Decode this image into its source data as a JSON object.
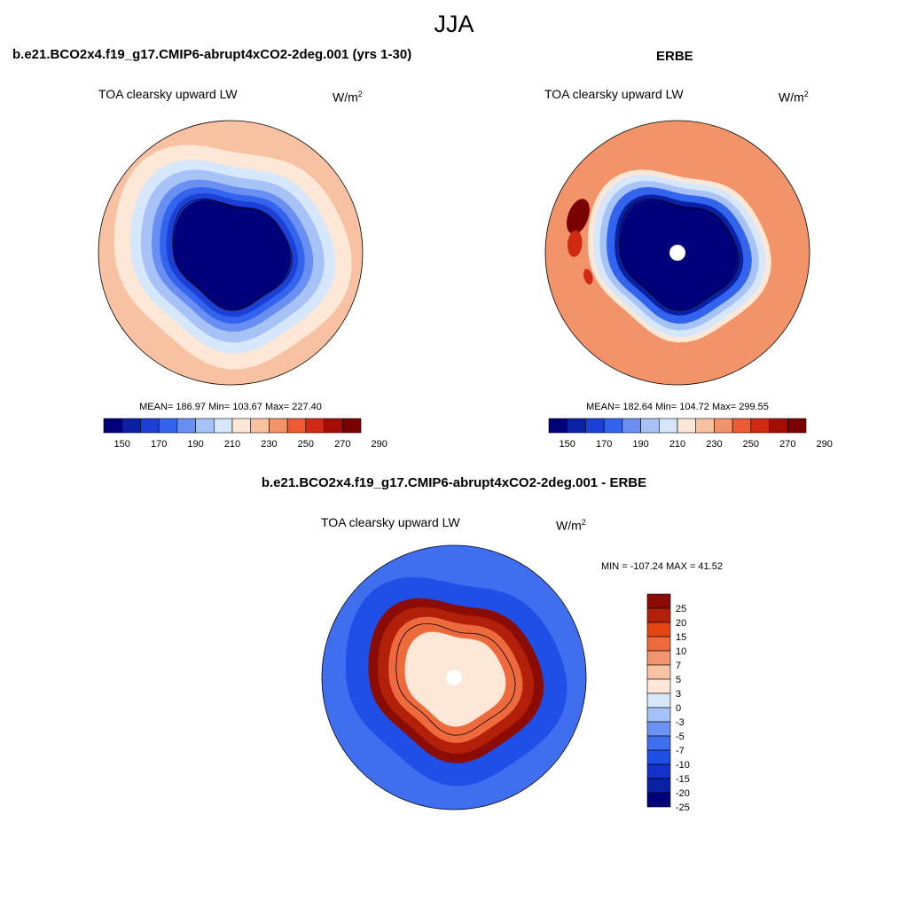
{
  "figure": {
    "title": "JJA",
    "colors": {
      "abs_palette": [
        "#00007a",
        "#0a21a6",
        "#1c3fd6",
        "#3364ee",
        "#6a8ff2",
        "#a6c2f7",
        "#d6e6fb",
        "#fde7d7",
        "#f8c1a1",
        "#f3936a",
        "#ee5a33",
        "#d02a12",
        "#a60e05",
        "#7a0000"
      ],
      "diff_palette": [
        "#00007a",
        "#0a21a6",
        "#1432c9",
        "#1f4fe6",
        "#3f6eef",
        "#6d93f2",
        "#a4c2f7",
        "#d8e7fb",
        "#fde8d8",
        "#f7c3a3",
        "#f29470",
        "#ee6a3d",
        "#e24412",
        "#b3200a",
        "#8a0c04"
      ],
      "coast": "#000000",
      "missing": "#ffffff"
    }
  },
  "chart_data": [
    {
      "type": "polar-contour",
      "panel": "model",
      "title": "b.e21.BCO2x4.f19_g17.CMIP6-abrupt4xCO2-2deg.001 (yrs 1-30)",
      "variable": "TOA clearsky upward LW",
      "units": "W/m",
      "units_sup": "2",
      "stats": {
        "mean": "186.97",
        "min": "103.67",
        "max": "227.40"
      },
      "stats_text": "MEAN= 186.97  Min= 103.67  Max= 227.40",
      "colorbar": {
        "levels": [
          150,
          160,
          170,
          180,
          190,
          200,
          210,
          220,
          230,
          240,
          250,
          260,
          270,
          280,
          290
        ],
        "tick_labels": [
          "150",
          "170",
          "190",
          "210",
          "230",
          "250",
          "270",
          "290"
        ]
      },
      "bands": [
        {
          "value": 225,
          "r": 1.0
        },
        {
          "value": 215,
          "r": 0.86
        },
        {
          "value": 205,
          "r": 0.74
        },
        {
          "value": 195,
          "r": 0.66
        },
        {
          "value": 185,
          "r": 0.58
        },
        {
          "value": 175,
          "r": 0.52
        },
        {
          "value": 165,
          "r": 0.47
        },
        {
          "value": 135,
          "r": 0.42
        }
      ]
    },
    {
      "type": "polar-contour",
      "panel": "observations",
      "title": "ERBE",
      "variable": "TOA clearsky upward LW",
      "units": "W/m",
      "units_sup": "2",
      "stats": {
        "mean": "182.64",
        "min": "104.72",
        "max": "299.55"
      },
      "stats_text": "MEAN= 182.64  Min= 104.72  Max= 299.55",
      "colorbar": {
        "levels": [
          150,
          160,
          170,
          180,
          190,
          200,
          210,
          220,
          230,
          240,
          250,
          260,
          270,
          280,
          290
        ],
        "tick_labels": [
          "150",
          "170",
          "190",
          "210",
          "230",
          "250",
          "270",
          "290"
        ]
      },
      "bands": [
        {
          "value": 232,
          "r": 1.0
        },
        {
          "value": 215,
          "r": 0.66
        },
        {
          "value": 205,
          "r": 0.62
        },
        {
          "value": 195,
          "r": 0.57
        },
        {
          "value": 175,
          "r": 0.52
        },
        {
          "value": 155,
          "r": 0.46
        },
        {
          "value": 135,
          "r": 0.42
        }
      ],
      "hotspots": [
        {
          "value": 285,
          "lon": 200,
          "rr": 0.8,
          "size": 0.14
        },
        {
          "value": 255,
          "lon": 185,
          "rr": 0.78,
          "size": 0.1
        },
        {
          "value": 255,
          "lon": 165,
          "rr": 0.7,
          "size": 0.06
        }
      ],
      "missing_pole": true
    },
    {
      "type": "polar-contour",
      "panel": "difference",
      "title": "b.e21.BCO2x4.f19_g17.CMIP6-abrupt4xCO2-2deg.001 - ERBE",
      "variable": "TOA clearsky upward LW",
      "units": "W/m",
      "units_sup": "2",
      "stats": {
        "min": "-107.24",
        "max": "41.52"
      },
      "stats_text": "MIN = -107.24 MAX =  41.52",
      "colorbar": {
        "levels": [
          -25,
          -20,
          -15,
          -10,
          -7,
          -5,
          -3,
          0,
          3,
          5,
          7,
          10,
          15,
          20,
          25
        ],
        "tick_labels": [
          "25",
          "20",
          "15",
          "10",
          "7",
          "5",
          "3",
          "0",
          "-3",
          "-5",
          "-7",
          "-10",
          "-15",
          "-20",
          "-25"
        ]
      },
      "bands": [
        {
          "value": -8,
          "r": 1.0
        },
        {
          "value": -12,
          "r": 0.8
        },
        {
          "value": 27,
          "r": 0.63
        },
        {
          "value": 18,
          "r": 0.56
        },
        {
          "value": 9,
          "r": 0.48
        },
        {
          "value": 1.5,
          "r": 0.36
        }
      ],
      "missing_pole": true
    }
  ]
}
